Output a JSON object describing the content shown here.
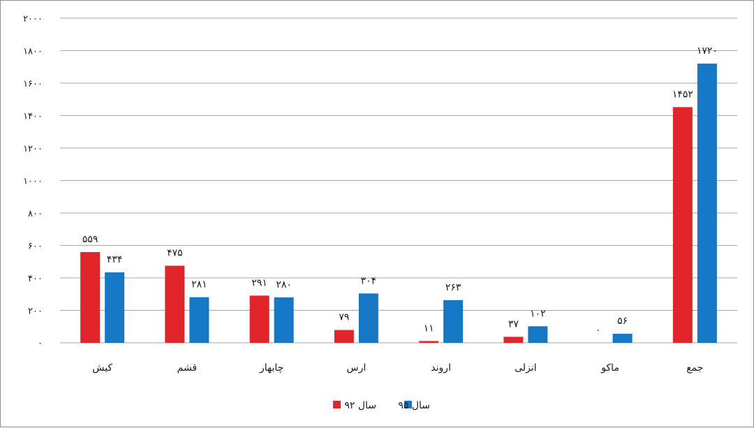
{
  "chart_data": {
    "type": "bar",
    "title": "",
    "xlabel": "",
    "ylabel": "",
    "categories": [
      "کیش",
      "قشم",
      "چابهار",
      "ارس",
      "اروند",
      "انزلی",
      "ماکو",
      "جمع"
    ],
    "series": [
      {
        "name": "سال ۹۲",
        "color": "#e0262b",
        "values": [
          559,
          475,
          291,
          79,
          11,
          37,
          0,
          1452
        ],
        "labels": [
          "۵۵۹",
          "۴۷۵",
          "۲۹۱",
          "۷۹",
          "۱۱",
          "۳۷",
          "۰",
          "۱۴۵۲"
        ]
      },
      {
        "name": "سال ۹۵",
        "color": "#1677c4",
        "values": [
          434,
          281,
          280,
          304,
          263,
          102,
          56,
          1720
        ],
        "labels": [
          "۴۳۴",
          "۲۸۱",
          "۲۸۰",
          "۳۰۴",
          "۲۶۳",
          "۱۰۲",
          "۵۶",
          "۱۷۲۰"
        ]
      }
    ],
    "ylim": [
      0,
      2000
    ],
    "yticks": [
      0,
      200,
      400,
      600,
      800,
      1000,
      1200,
      1400,
      1600,
      1800,
      2000
    ],
    "ytick_labels": [
      "۰",
      "۲۰۰",
      "۴۰۰",
      "۶۰۰",
      "۸۰۰",
      "۱۰۰۰",
      "۱۲۰۰",
      "۱۴۰۰",
      "۱۶۰۰",
      "۱۸۰۰",
      "۲۰۰۰"
    ],
    "grid": true,
    "legend_position": "bottom-center"
  }
}
